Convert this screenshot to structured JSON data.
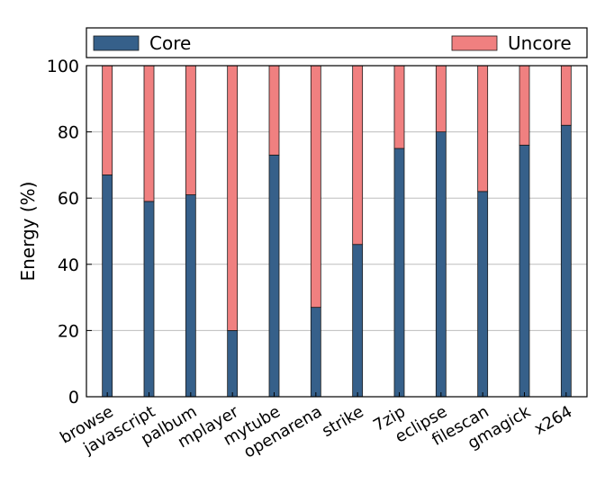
{
  "chart_data": {
    "type": "bar",
    "stacked": true,
    "title": "",
    "xlabel": "",
    "ylabel": "Energy (%)",
    "ylim": [
      0,
      100
    ],
    "yticks": [
      0,
      20,
      40,
      60,
      80,
      100
    ],
    "grid": true,
    "legend_position": "top",
    "categories": [
      "browse",
      "javascript",
      "palbum",
      "mplayer",
      "mytube",
      "openarena",
      "strike",
      "7zip",
      "eclipse",
      "filescan",
      "gmagick",
      "x264"
    ],
    "series": [
      {
        "name": "Core",
        "color": "#36608a",
        "values": [
          67,
          59,
          61,
          20,
          73,
          27,
          46,
          75,
          80,
          62,
          76,
          82
        ]
      },
      {
        "name": "Uncore",
        "color": "#f08080",
        "values": [
          33,
          41,
          39,
          80,
          27,
          73,
          54,
          25,
          20,
          38,
          24,
          18
        ]
      }
    ]
  }
}
